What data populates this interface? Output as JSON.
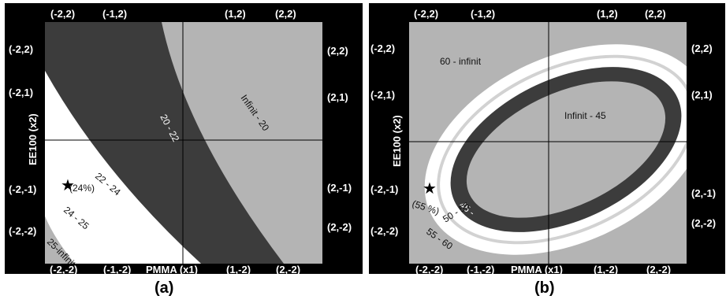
{
  "figure": {
    "panels": [
      {
        "caption": "(a)"
      },
      {
        "caption": "(b)"
      }
    ]
  },
  "chart_data": [
    {
      "type": "contour",
      "xlabel": "PMMA (x1)",
      "ylabel": "EE100 (x2)",
      "xlim": [
        -2,
        2
      ],
      "ylim": [
        -2,
        2
      ],
      "corner_labels": {
        "top": [
          "(-2,2)",
          "(-1,2)",
          "(1,2)",
          "(2,2)"
        ],
        "left": [
          "(-2,2)",
          "(-2,1)",
          "(-2,-1)",
          "(-2,-2)"
        ],
        "right": [
          "(2,2)",
          "(2,1)",
          "(2,-1)",
          "(2,-2)"
        ],
        "bottom": [
          "(-2,-2)",
          "(-1,-2)",
          "(1,-2)",
          "(2,-2)"
        ]
      },
      "regions": [
        {
          "label": "25-infinit",
          "color": "#b4b4b4"
        },
        {
          "label": "24 - 25",
          "color": "#ffffff"
        },
        {
          "label": "22 - 24",
          "color": "#ffffff"
        },
        {
          "label": "20 - 22",
          "color": "#3c3c3c"
        },
        {
          "label": "Infinit - 20",
          "color": "#b4b4b4"
        }
      ],
      "optimum": {
        "x": -1.75,
        "y": -1.1,
        "label": "(24%)"
      }
    },
    {
      "type": "contour",
      "xlabel": "PMMA (x1)",
      "ylabel": "EE100 (x2)",
      "xlim": [
        -2,
        2
      ],
      "ylim": [
        -2,
        2
      ],
      "corner_labels": {
        "top": [
          "(-2,2)",
          "(-1,2)",
          "(1,2)",
          "(2,2)"
        ],
        "left": [
          "(-2,2)",
          "(-2,1)",
          "(-2,-1)",
          "(-2,-2)"
        ],
        "right": [
          "(2,2)",
          "(2,1)",
          "(2,-1)",
          "(2,-2)"
        ],
        "bottom": [
          "(-2,-2)",
          "(-1,-2)",
          "(1,-2)",
          "(2,-2)"
        ]
      },
      "regions": [
        {
          "label": "60 - infinit",
          "color": "#b4b4b4"
        },
        {
          "label": "55 - 60",
          "color": "#ffffff"
        },
        {
          "label": "50 - 55",
          "color": "#ffffff"
        },
        {
          "label": "45 -",
          "color": "#3c3c3c"
        },
        {
          "label": "Infinit - 45",
          "color": "#b4b4b4"
        }
      ],
      "optimum": {
        "x": -1.8,
        "y": -1.2,
        "label": "(55 %)"
      }
    }
  ]
}
